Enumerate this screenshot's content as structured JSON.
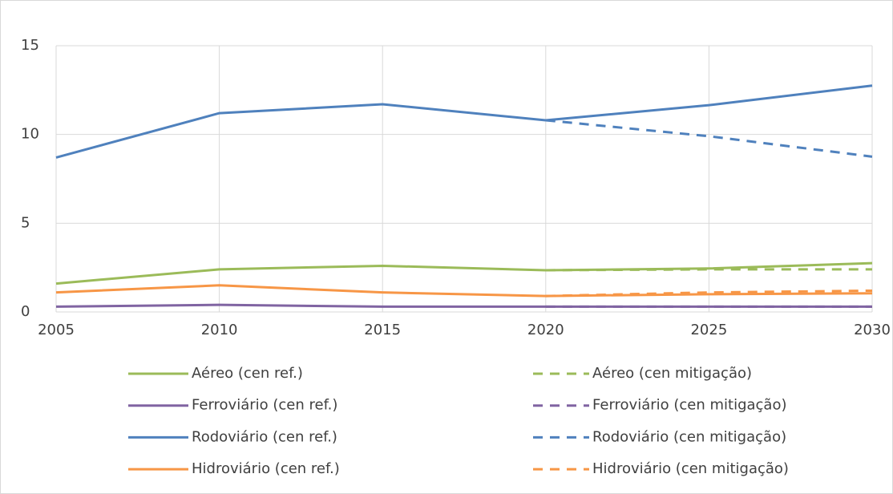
{
  "chart_data": {
    "type": "line",
    "x": [
      2005,
      2010,
      2015,
      2020,
      2025,
      2030
    ],
    "xlim": [
      2005,
      2030
    ],
    "xticks": [
      2005,
      2010,
      2015,
      2020,
      2025,
      2030
    ],
    "ylim": [
      0,
      15
    ],
    "yticks": [
      0,
      5,
      10,
      15
    ],
    "grid": true,
    "series": [
      {
        "name": "Aéreo (cen ref.)",
        "color": "#9bbb59",
        "dashed": false,
        "values": [
          1.6,
          2.4,
          2.6,
          2.35,
          2.45,
          2.75
        ]
      },
      {
        "name": "Aéreo (cen mitigação)",
        "color": "#9bbb59",
        "dashed": true,
        "values": [
          null,
          null,
          null,
          2.35,
          2.4,
          2.4
        ]
      },
      {
        "name": "Ferroviário (cen ref.)",
        "color": "#8064a2",
        "dashed": false,
        "values": [
          0.3,
          0.4,
          0.3,
          0.3,
          0.3,
          0.3
        ]
      },
      {
        "name": "Ferroviário (cen mitigação)",
        "color": "#8064a2",
        "dashed": true,
        "values": [
          null,
          null,
          null,
          0.3,
          0.3,
          0.3
        ]
      },
      {
        "name": "Rodoviário (cen ref.)",
        "color": "#4f81bd",
        "dashed": false,
        "values": [
          8.7,
          11.2,
          11.7,
          10.8,
          11.65,
          12.75
        ]
      },
      {
        "name": "Rodoviário (cen mitigação)",
        "color": "#4f81bd",
        "dashed": true,
        "values": [
          null,
          null,
          null,
          10.8,
          9.9,
          8.75
        ]
      },
      {
        "name": "Hidroviário (cen ref.)",
        "color": "#f79646",
        "dashed": false,
        "values": [
          1.1,
          1.5,
          1.1,
          0.9,
          1.0,
          1.05
        ]
      },
      {
        "name": "Hidroviário (cen mitigação)",
        "color": "#f79646",
        "dashed": true,
        "values": [
          null,
          null,
          null,
          0.9,
          1.1,
          1.2
        ]
      }
    ]
  }
}
